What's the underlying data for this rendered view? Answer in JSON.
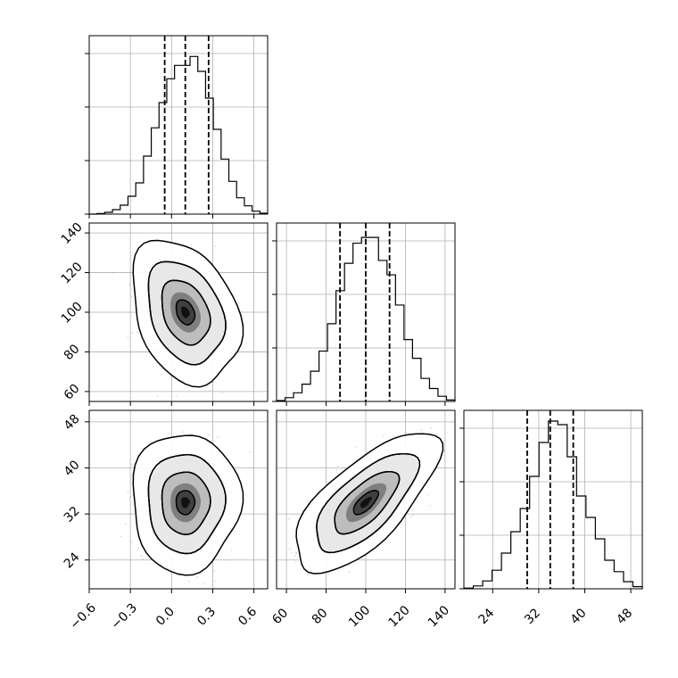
{
  "chart_data": {
    "type": "corner",
    "grid": true,
    "colors": {
      "line": "#000000",
      "grid": "#b0b0b0",
      "scatter": "#999999",
      "fill_dark": "#111111",
      "fill_light": "#ffffff"
    },
    "parameters": [
      {
        "name": "p0",
        "label": "",
        "range": [
          -0.6,
          0.7
        ],
        "ticks": [
          "−0.6",
          "−0.3",
          "0.0",
          "0.3",
          "0.6"
        ],
        "tick_values": [
          -0.6,
          -0.3,
          0.0,
          0.3,
          0.6
        ],
        "quantiles": [
          -0.05,
          0.1,
          0.27
        ],
        "hist_bins": [
          -0.6,
          0.7
        ],
        "hist_counts": [
          0.0,
          0.2,
          0.6,
          1.5,
          3.0,
          6.0,
          10.5,
          19.5,
          29.0,
          37.5,
          45.5,
          50.0,
          50.0,
          53.0,
          48.0,
          39.0,
          28.5,
          18.5,
          11.0,
          5.5,
          2.8,
          1.0,
          0.3
        ],
        "hist_ymax": 60
      },
      {
        "name": "p1",
        "label": "",
        "range": [
          55,
          145
        ],
        "ticks": [
          "60",
          "80",
          "100",
          "120",
          "140"
        ],
        "tick_values": [
          60,
          80,
          100,
          120,
          140
        ],
        "quantiles": [
          87,
          100,
          112
        ],
        "hist_bins": [
          55,
          145
        ],
        "hist_counts": [
          0.3,
          1.3,
          3.0,
          6.0,
          10.5,
          17.5,
          27.0,
          38.5,
          48.0,
          55.0,
          57.0,
          57.0,
          49.0,
          44.0,
          33.5,
          21.5,
          15.0,
          8.0,
          4.5,
          1.8,
          0.5
        ],
        "hist_ymax": 62
      },
      {
        "name": "p2",
        "label": "",
        "range": [
          19,
          50
        ],
        "ticks": [
          "24",
          "32",
          "40",
          "48"
        ],
        "tick_values": [
          24,
          32,
          40,
          48
        ],
        "quantiles": [
          30,
          34,
          38
        ],
        "hist_bins": [
          19,
          50
        ],
        "hist_counts": [
          0.2,
          0.8,
          2.2,
          5.2,
          10.0,
          16.0,
          22.5,
          31.5,
          41.0,
          47.0,
          46.0,
          37.0,
          26.0,
          20.0,
          14.0,
          8.0,
          4.8,
          2.0,
          0.6
        ],
        "hist_ymax": 50
      }
    ],
    "pairs": [
      {
        "x": 0,
        "y": 1,
        "center": [
          0.1,
          100
        ],
        "sigma": [
          0.13,
          12
        ],
        "rho": -0.3,
        "levels": [
          0.3,
          0.6,
          0.9,
          0.99
        ]
      },
      {
        "x": 0,
        "y": 2,
        "center": [
          0.1,
          34
        ],
        "sigma": [
          0.13,
          4.0
        ],
        "rho": 0.0,
        "levels": [
          0.3,
          0.6,
          0.9,
          0.99
        ]
      },
      {
        "x": 1,
        "y": 2,
        "center": [
          100,
          34
        ],
        "sigma": [
          12,
          4.0
        ],
        "rho": 0.7,
        "levels": [
          0.3,
          0.6,
          0.9,
          0.99
        ]
      }
    ]
  }
}
